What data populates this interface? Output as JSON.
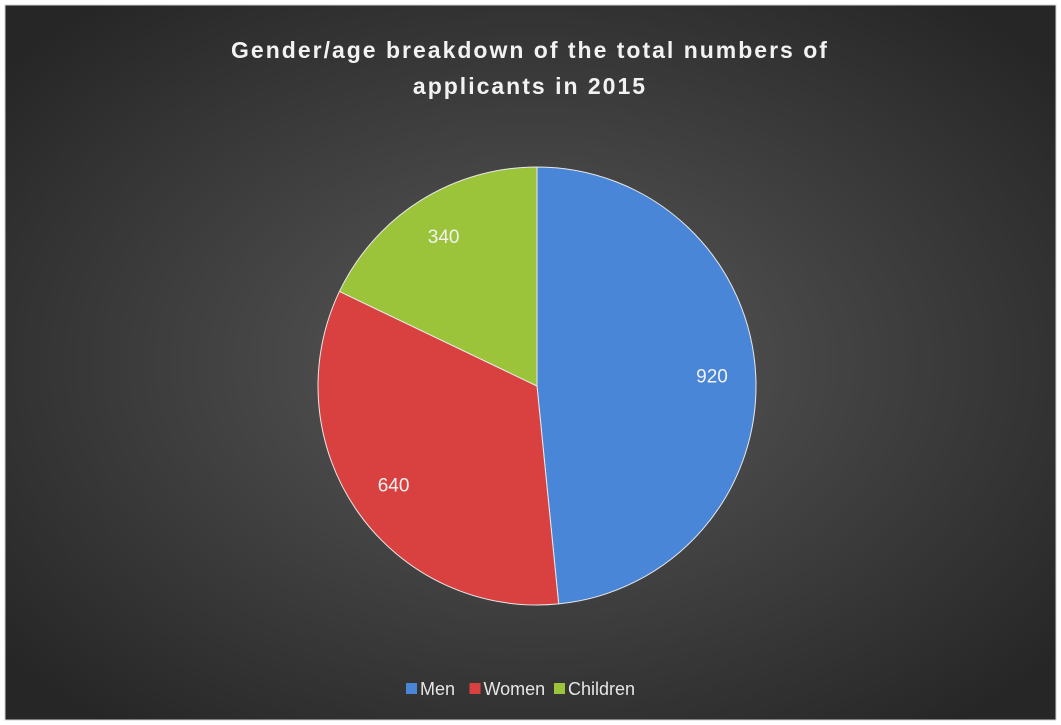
{
  "chart_data": {
    "type": "pie",
    "title": "Gender/age breakdown of the total numbers of applicants in 2015",
    "categories": [
      "Men",
      "Women",
      "Children"
    ],
    "values": [
      920,
      640,
      340
    ],
    "colors": [
      "#4a86d8",
      "#d94141",
      "#9bc43b"
    ],
    "legend": "bottom"
  }
}
